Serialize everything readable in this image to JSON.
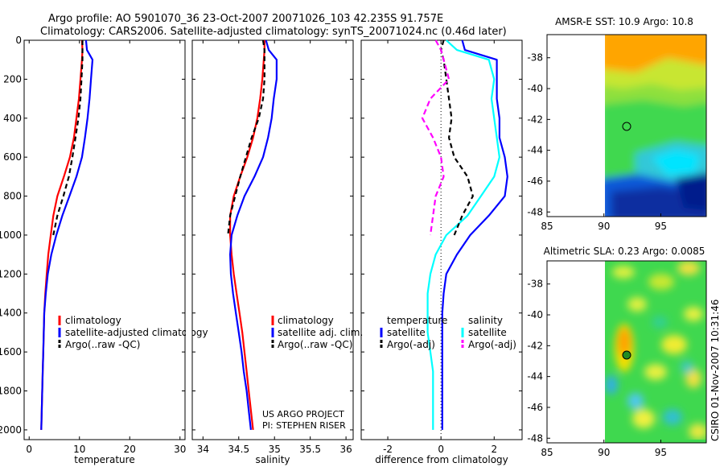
{
  "title": {
    "line1": "Argo profile: AO 5901070_36 23-Oct-2007 20071026_103 42.235S 91.757E",
    "line2": "Climatology: CARS2006. Satellite-adjusted climatology: synTS_20071024.nc (0.46d later)"
  },
  "credits": {
    "project": "US ARGO PROJECT",
    "pi": "PI: STEPHEN RISER",
    "stamp": "CSIRO 01-Nov-2007 10:31:46"
  },
  "colors": {
    "climatology": "#ff0000",
    "satellite": "#0000ff",
    "argo": "#000000",
    "diff_temp_sat": "#0000ff",
    "diff_sal_sat": "#00ffff",
    "diff_sal_argo": "#ff00ff"
  },
  "chart_data": [
    {
      "type": "line",
      "id": "temperature",
      "xlabel": "temperature",
      "xlim": [
        -1,
        31
      ],
      "ylim": [
        0,
        2050
      ],
      "xticks": [
        "0",
        "10",
        "20",
        "30"
      ],
      "yticks": [
        "0",
        "200",
        "400",
        "600",
        "800",
        "1000",
        "1200",
        "1400",
        "1600",
        "1800",
        "2000"
      ],
      "legend": [
        "climatology",
        "satellite-adjusted climatology",
        "Argo(..raw -QC)"
      ],
      "depth": [
        0,
        50,
        100,
        200,
        300,
        400,
        500,
        600,
        700,
        800,
        900,
        1000,
        1100,
        1200,
        1300,
        1400,
        1500,
        1600,
        1700,
        1800,
        1900,
        2000
      ],
      "series": [
        {
          "name": "climatology",
          "values": [
            10.5,
            10.6,
            10.5,
            10.2,
            9.9,
            9.4,
            8.9,
            8.1,
            6.9,
            5.6,
            4.8,
            4.3,
            3.8,
            3.5,
            3.2,
            3.0,
            2.9,
            2.8,
            2.7,
            2.6,
            2.5,
            2.4
          ]
        },
        {
          "name": "satellite",
          "values": [
            11.3,
            11.5,
            12.6,
            12.3,
            12.0,
            11.6,
            11.1,
            10.5,
            9.4,
            8.0,
            6.6,
            5.4,
            4.4,
            3.7,
            3.3,
            3.0,
            2.9,
            2.8,
            2.7,
            2.6,
            2.5,
            2.4
          ]
        },
        {
          "name": "Argo(..raw -QC)",
          "values": [
            10.6,
            10.6,
            10.6,
            10.4,
            10.2,
            9.8,
            9.2,
            8.6,
            7.9,
            6.8,
            5.6,
            4.8
          ]
        }
      ]
    },
    {
      "type": "line",
      "id": "salinity",
      "xlabel": "salinity",
      "xlim": [
        33.85,
        36.1
      ],
      "ylim": [
        0,
        2050
      ],
      "xticks": [
        "34",
        "34.5",
        "35",
        "35.5",
        "36"
      ],
      "legend": [
        "climatology",
        "satellite adj. clim.",
        "Argo(..raw -QC)"
      ],
      "depth": [
        0,
        50,
        100,
        200,
        300,
        400,
        500,
        600,
        700,
        800,
        900,
        1000,
        1100,
        1200,
        1300,
        1400,
        1500,
        1600,
        1700,
        1800,
        1900,
        2000
      ],
      "series": [
        {
          "name": "climatology",
          "values": [
            34.86,
            34.86,
            34.85,
            34.83,
            34.8,
            34.76,
            34.7,
            34.62,
            34.52,
            34.43,
            34.38,
            34.38,
            34.4,
            34.43,
            34.47,
            34.51,
            34.55,
            34.58,
            34.61,
            34.64,
            34.67,
            34.7
          ]
        },
        {
          "name": "satellite",
          "values": [
            34.88,
            34.92,
            35.03,
            35.03,
            34.99,
            34.96,
            34.91,
            34.84,
            34.72,
            34.58,
            34.48,
            34.4,
            34.38,
            34.39,
            34.42,
            34.46,
            34.5,
            34.54,
            34.57,
            34.61,
            34.64,
            34.67
          ]
        },
        {
          "name": "Argo(..raw -QC)",
          "values": [
            34.84,
            34.86,
            34.86,
            34.86,
            34.84,
            34.78,
            34.68,
            34.6,
            34.52,
            34.45,
            34.38,
            34.35
          ]
        }
      ]
    },
    {
      "type": "line",
      "id": "difference",
      "xlabel": "difference from climatology",
      "xlim": [
        -3,
        3.05
      ],
      "ylim": [
        0,
        2050
      ],
      "xticks": [
        "-2",
        "0",
        "2"
      ],
      "legend_temperature": [
        "temperature",
        "satellite",
        "Argo(-adj)"
      ],
      "legend_salinity": [
        "salinity",
        "satellite",
        "Argo(-adj)"
      ],
      "depth": [
        0,
        50,
        100,
        200,
        300,
        400,
        500,
        600,
        700,
        800,
        900,
        1000,
        1100,
        1200,
        1300,
        1400,
        1500,
        1600,
        1700,
        1800,
        1900,
        2000
      ],
      "series": [
        {
          "name": "temperature satellite",
          "values": [
            0.8,
            0.9,
            2.1,
            2.1,
            2.1,
            2.2,
            2.2,
            2.4,
            2.5,
            2.4,
            1.8,
            1.1,
            0.6,
            0.2,
            0.1,
            0.05,
            0.05,
            0.05,
            0.05,
            0.05,
            0.05,
            0.05
          ]
        },
        {
          "name": "salinity satellite",
          "values": [
            0.2,
            0.6,
            1.8,
            2.0,
            1.9,
            2.0,
            2.1,
            2.2,
            2.0,
            1.5,
            1.0,
            0.2,
            -0.2,
            -0.4,
            -0.5,
            -0.5,
            -0.5,
            -0.4,
            -0.3,
            -0.3,
            -0.3,
            -0.3
          ]
        },
        {
          "name": "temperature Argo(-adj)",
          "values": [
            0.1,
            0.0,
            0.1,
            0.2,
            0.3,
            0.4,
            0.3,
            0.5,
            1.0,
            1.2,
            0.8,
            0.5
          ]
        },
        {
          "name": "salinity Argo(-adj)",
          "values": [
            -0.2,
            0.0,
            0.1,
            0.3,
            -0.4,
            -0.7,
            -0.3,
            0.0,
            0.1,
            -0.2,
            -0.3,
            -0.4
          ]
        }
      ]
    },
    {
      "type": "heatmap",
      "id": "sst-map",
      "title": "AMSR-E SST: 10.9 Argo: 10.8",
      "xlim": [
        85,
        99
      ],
      "ylim": [
        -48.3,
        -36.5
      ],
      "xticks": [
        "85",
        "90",
        "95"
      ],
      "yticks": [
        "-38",
        "-40",
        "-42",
        "-44",
        "-46",
        "-48"
      ],
      "data_lon_range": [
        90,
        99
      ],
      "argo_position": [
        91.757,
        -42.235
      ]
    },
    {
      "type": "heatmap",
      "id": "sla-map",
      "title": "Altimetric SLA: 0.23 Argo: 0.0085",
      "xlim": [
        85,
        99
      ],
      "ylim": [
        -48.3,
        -36.5
      ],
      "xticks": [
        "85",
        "90",
        "95"
      ],
      "yticks": [
        "-38",
        "-40",
        "-42",
        "-44",
        "-46",
        "-48"
      ],
      "data_lon_range": [
        90,
        99
      ],
      "argo_position": [
        91.757,
        -42.235
      ]
    }
  ]
}
